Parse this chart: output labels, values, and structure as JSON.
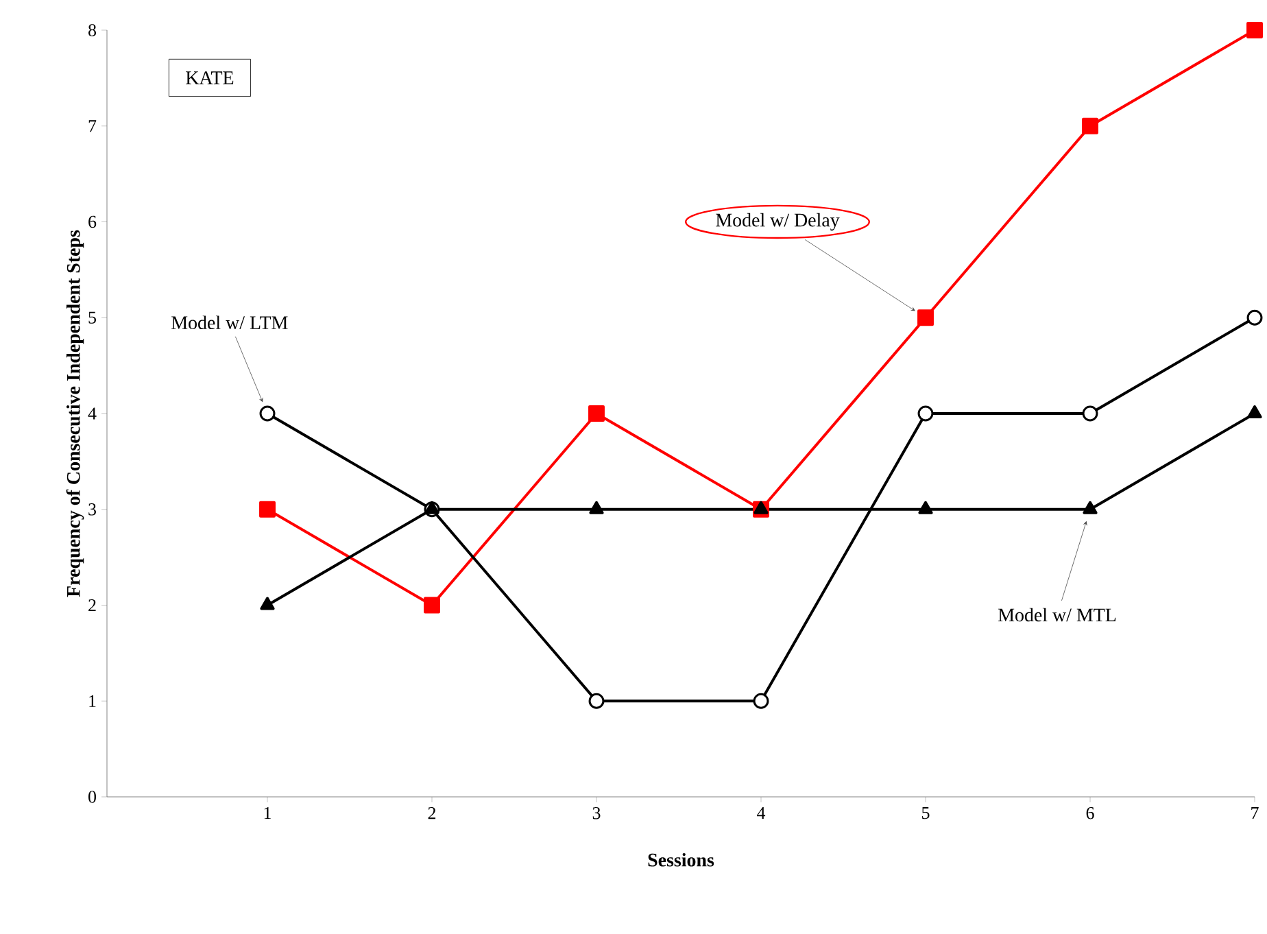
{
  "chart_data": {
    "type": "line",
    "xlabel": "Sessions",
    "ylabel": "Frequency of Consecutive Independent Steps",
    "categories": [
      "1",
      "2",
      "3",
      "4",
      "5",
      "6",
      "7"
    ],
    "series": [
      {
        "name": "Model w/ Delay",
        "color": "#ff0000",
        "marker": "square",
        "values": [
          3,
          2,
          4,
          3,
          5,
          7,
          8
        ]
      },
      {
        "name": "Model w/ LTM",
        "color": "#000000",
        "marker": "circle",
        "values": [
          4,
          3,
          1,
          1,
          4,
          4,
          5
        ]
      },
      {
        "name": "Model w/ MTL",
        "color": "#000000",
        "marker": "triangle",
        "values": [
          2,
          3,
          3,
          3,
          3,
          3,
          4
        ]
      }
    ],
    "ylim": [
      0,
      8
    ],
    "yticks": [
      0,
      1,
      2,
      3,
      4,
      5,
      6,
      7,
      8
    ],
    "line_style": "solid",
    "annotations": [
      "KATE"
    ]
  }
}
